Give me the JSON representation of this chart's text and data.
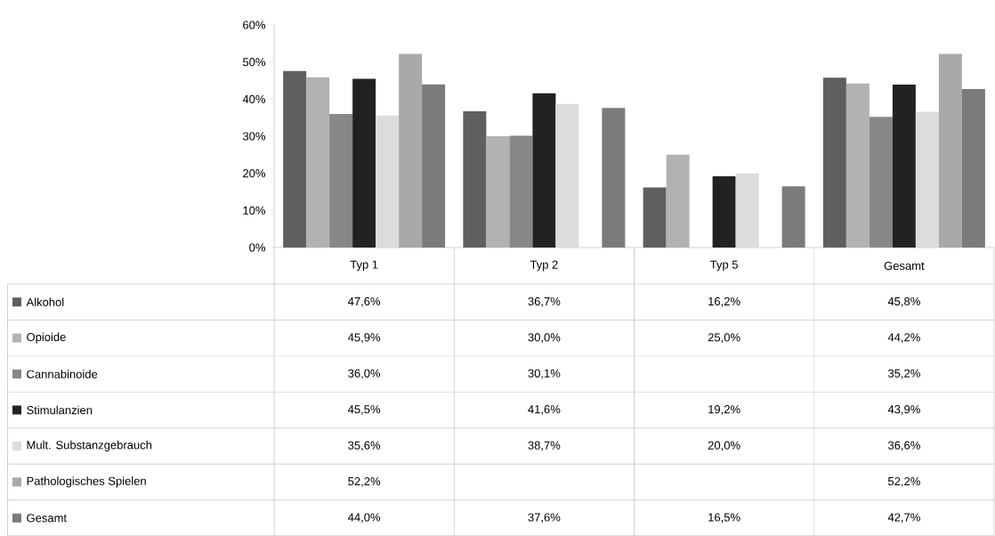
{
  "chart_data": {
    "type": "bar",
    "categories": [
      "Typ 1",
      "Typ 2",
      "Typ 5",
      "Gesamt"
    ],
    "ylim": [
      0,
      60
    ],
    "yticks": [
      {
        "value": 0,
        "label": "0%"
      },
      {
        "value": 10,
        "label": "10%"
      },
      {
        "value": 20,
        "label": "20%"
      },
      {
        "value": 30,
        "label": "30%"
      },
      {
        "value": 40,
        "label": "40%"
      },
      {
        "value": 50,
        "label": "50%"
      },
      {
        "value": 60,
        "label": "60%"
      }
    ],
    "legend": "bottom",
    "series": [
      {
        "name": "Alkohol",
        "color": "#5f5f5f",
        "values": [
          47.6,
          36.7,
          16.2,
          45.8
        ],
        "value_labels": [
          "47,6%",
          "36,7%",
          "16,2%",
          "45,8%"
        ]
      },
      {
        "name": "Opioide",
        "color": "#b2b2b2",
        "values": [
          45.9,
          30.0,
          25.0,
          44.2
        ],
        "value_labels": [
          "45,9%",
          "30,0%",
          "25,0%",
          "44,2%"
        ]
      },
      {
        "name": "Cannabinoide",
        "color": "#878787",
        "values": [
          36.0,
          30.1,
          null,
          35.2
        ],
        "value_labels": [
          "36,0%",
          "30,1%",
          null,
          "35,2%"
        ]
      },
      {
        "name": "Stimulanzien",
        "color": "#222222",
        "values": [
          45.5,
          41.6,
          19.2,
          43.9
        ],
        "value_labels": [
          "45,5%",
          "41,6%",
          "19,2%",
          "43,9%"
        ]
      },
      {
        "name": "Mult. Substanzgebrauch",
        "color": "#dcdcdc",
        "values": [
          35.6,
          38.7,
          20.0,
          36.6
        ],
        "value_labels": [
          "35,6%",
          "38,7%",
          "20,0%",
          "36,6%"
        ]
      },
      {
        "name": "Pathologisches Spielen",
        "color": "#a9a9a9",
        "values": [
          52.2,
          null,
          null,
          52.2
        ],
        "value_labels": [
          "52,2%",
          null,
          null,
          "52,2%"
        ]
      },
      {
        "name": "Gesamt",
        "color": "#7b7b7b",
        "values": [
          44.0,
          37.6,
          16.5,
          42.7
        ],
        "value_labels": [
          "44,0%",
          "37,6%",
          "16,5%",
          "42,7%"
        ]
      }
    ]
  }
}
